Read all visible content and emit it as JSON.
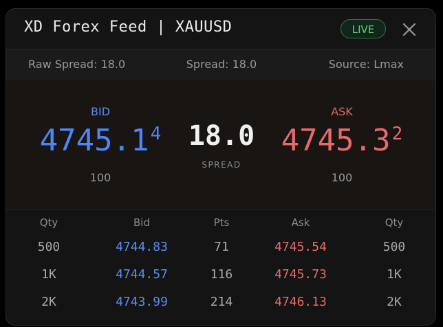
{
  "header": {
    "title": "XD Forex Feed | XAUUSD",
    "status": "LIVE"
  },
  "info": {
    "raw_spread": "Raw Spread: 18.0",
    "spread": "Spread: 18.0",
    "source": "Source: Lmax"
  },
  "quote": {
    "bid": {
      "label": "BID",
      "price": "4745.1",
      "pip": "4",
      "size": "100"
    },
    "spread": {
      "value": "18.0",
      "label": "SPREAD"
    },
    "ask": {
      "label": "ASK",
      "price": "4745.3",
      "pip": "2",
      "size": "100"
    }
  },
  "table": {
    "headers": [
      "Qty",
      "Bid",
      "Pts",
      "Ask",
      "Qty"
    ],
    "rows": [
      [
        "500",
        "4744.83",
        "71",
        "4745.54",
        "500"
      ],
      [
        "1K",
        "4744.57",
        "116",
        "4745.73",
        "1K"
      ],
      [
        "2K",
        "4743.99",
        "214",
        "4746.13",
        "2K"
      ]
    ]
  }
}
